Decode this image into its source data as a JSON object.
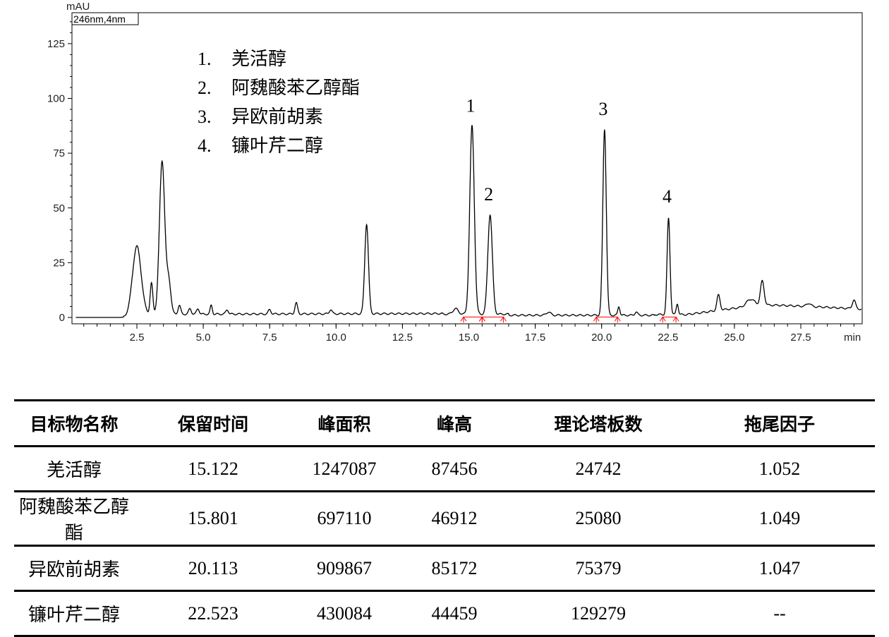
{
  "chart_data": {
    "type": "line",
    "wavelength_label": "246nm,4nm",
    "y_unit": "mAU",
    "x_unit": "min",
    "xlim": [
      0.2,
      30.0
    ],
    "ylim": [
      -5,
      140
    ],
    "x_ticks": [
      "2.5",
      "5.0",
      "7.5",
      "10.0",
      "12.5",
      "15.0",
      "17.5",
      "20.0",
      "22.5",
      "25.0",
      "27.5"
    ],
    "y_ticks": [
      "0",
      "25",
      "50",
      "75",
      "100",
      "125"
    ],
    "legend": [
      {
        "num": "1.",
        "name": "羌活醇"
      },
      {
        "num": "2.",
        "name": "阿魏酸苯乙醇酯"
      },
      {
        "num": "3.",
        "name": "异欧前胡素"
      },
      {
        "num": "4.",
        "name": "镰叶芹二醇"
      }
    ],
    "peak_labels": [
      {
        "label": "1",
        "x": 15.12,
        "y": 87.5
      },
      {
        "label": "2",
        "x": 15.8,
        "y": 47
      },
      {
        "label": "3",
        "x": 20.11,
        "y": 86
      },
      {
        "label": "4",
        "x": 22.52,
        "y": 46
      }
    ],
    "baseline_markers": [
      {
        "x1": 14.8,
        "x2": 15.5
      },
      {
        "x1": 15.5,
        "x2": 16.3
      },
      {
        "x1": 19.8,
        "x2": 20.6
      },
      {
        "x1": 22.3,
        "x2": 22.8
      }
    ],
    "peaks": [
      {
        "t": 2.5,
        "h": 31,
        "w": 0.16
      },
      {
        "t": 3.05,
        "h": 14,
        "w": 0.05
      },
      {
        "t": 3.45,
        "h": 70,
        "w": 0.1
      },
      {
        "t": 3.7,
        "h": 15,
        "w": 0.08
      },
      {
        "t": 4.1,
        "h": 4,
        "w": 0.05
      },
      {
        "t": 4.5,
        "h": 2.5,
        "w": 0.05
      },
      {
        "t": 4.8,
        "h": 2.5,
        "w": 0.05
      },
      {
        "t": 5.3,
        "h": 4,
        "w": 0.04
      },
      {
        "t": 5.9,
        "h": 2,
        "w": 0.05
      },
      {
        "t": 7.5,
        "h": 2,
        "w": 0.05
      },
      {
        "t": 8.5,
        "h": 5,
        "w": 0.05
      },
      {
        "t": 9.8,
        "h": 2,
        "w": 0.05
      },
      {
        "t": 11.15,
        "h": 41,
        "w": 0.07
      },
      {
        "t": 14.5,
        "h": 2.5,
        "w": 0.1
      },
      {
        "t": 15.12,
        "h": 86,
        "w": 0.085
      },
      {
        "t": 15.8,
        "h": 45.5,
        "w": 0.085
      },
      {
        "t": 18.0,
        "h": 1.5,
        "w": 0.08
      },
      {
        "t": 20.11,
        "h": 85,
        "w": 0.065
      },
      {
        "t": 20.65,
        "h": 4,
        "w": 0.04
      },
      {
        "t": 21.3,
        "h": 1.5,
        "w": 0.05
      },
      {
        "t": 22.52,
        "h": 44,
        "w": 0.055
      },
      {
        "t": 22.85,
        "h": 5,
        "w": 0.04
      },
      {
        "t": 24.4,
        "h": 7,
        "w": 0.06
      },
      {
        "t": 25.6,
        "h": 3,
        "w": 0.15
      },
      {
        "t": 26.05,
        "h": 11,
        "w": 0.07
      },
      {
        "t": 27.8,
        "h": 1.5,
        "w": 0.08
      },
      {
        "t": 29.5,
        "h": 4,
        "w": 0.06
      }
    ]
  },
  "table": {
    "headers": [
      "目标物名称",
      "保留时间",
      "峰面积",
      "峰高",
      "理论塔板数",
      "拖尾因子"
    ],
    "rows": [
      [
        "羌活醇",
        "15.122",
        "1247087",
        "87456",
        "24742",
        "1.052"
      ],
      [
        "阿魏酸苯乙醇酯",
        "15.801",
        "697110",
        "46912",
        "25080",
        "1.049"
      ],
      [
        "异欧前胡素",
        "20.113",
        "909867",
        "85172",
        "75379",
        "1.047"
      ],
      [
        "镰叶芹二醇",
        "22.523",
        "430084",
        "44459",
        "129279",
        "--"
      ]
    ]
  }
}
